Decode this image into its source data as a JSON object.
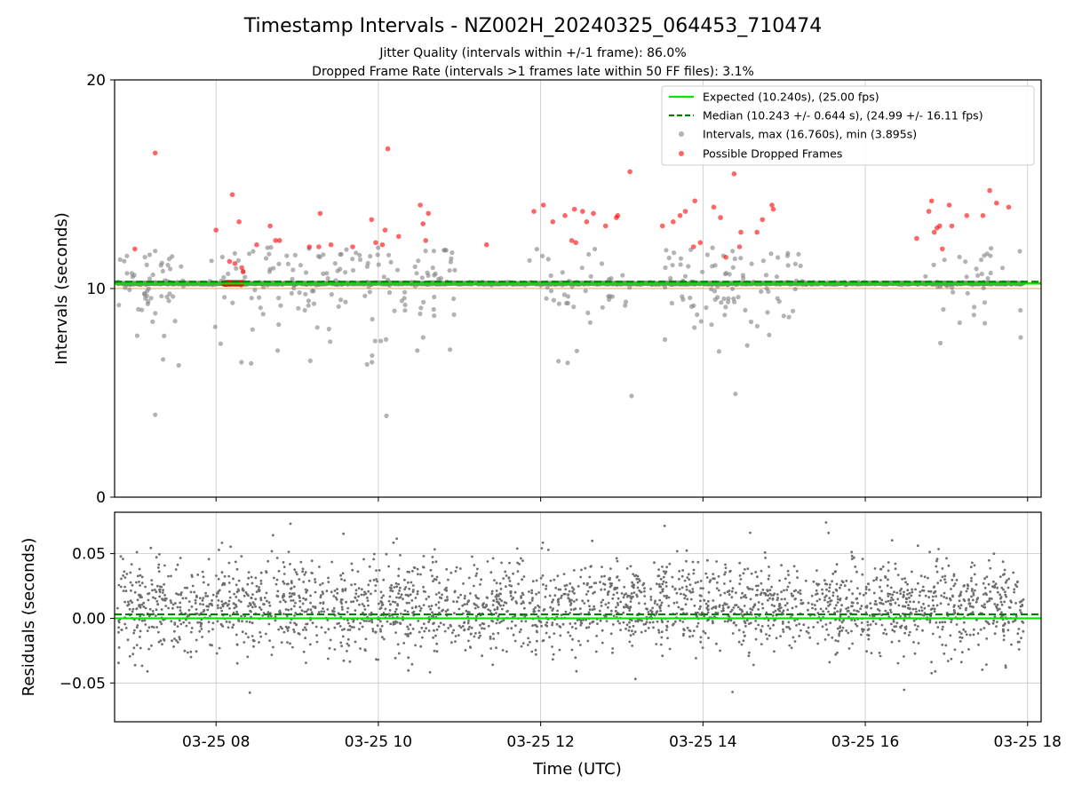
{
  "title": "Timestamp Intervals - NZ002H_20240325_064453_710474",
  "subtitle_lines": [
    "Jitter Quality (intervals within +/-1 frame): 86.0%",
    "Dropped Frame Rate (intervals >1 frames late within 50 FF files): 3.1%"
  ],
  "colors": {
    "expected": "#00e600",
    "median": "#008000",
    "intervals": "#808080",
    "dropped": "#ff0000",
    "band": "#ffd966"
  },
  "chart_data": [
    {
      "type": "scatter",
      "panel": "top",
      "ylabel": "Intervals (seconds)",
      "ylim": [
        0,
        20
      ],
      "yticks": [
        0,
        10,
        20
      ],
      "x_range": [
        "03-25 06:45",
        "03-25 18:10"
      ],
      "grid": true,
      "legend_placement": "top-right",
      "legend": [
        "Expected (10.240s), (25.00 fps)",
        "Median (10.243 +/- 0.644 s), (24.99 +/- 16.11 fps)",
        "Intervals, max (16.760s), min (3.895s)",
        "Possible Dropped Frames"
      ],
      "expected_interval": 10.24,
      "median_interval": 10.243,
      "interval_max": 16.76,
      "interval_min": 3.895,
      "dropped_points": [
        [
          "03-25 07:00",
          11.9
        ],
        [
          "03-25 07:15",
          16.5
        ],
        [
          "03-25 08:00",
          12.8
        ],
        [
          "03-25 08:10",
          11.3
        ],
        [
          "03-25 08:12",
          14.5
        ],
        [
          "03-25 08:14",
          11.2
        ],
        [
          "03-25 08:17",
          13.2
        ],
        [
          "03-25 08:19",
          11.0
        ],
        [
          "03-25 08:20",
          10.8
        ],
        [
          "03-25 08:30",
          12.1
        ],
        [
          "03-25 08:40",
          13.0
        ],
        [
          "03-25 08:44",
          12.3
        ],
        [
          "03-25 08:47",
          12.3
        ],
        [
          "03-25 09:09",
          12.0
        ],
        [
          "03-25 09:16",
          12.0
        ],
        [
          "03-25 09:17",
          13.6
        ],
        [
          "03-25 09:25",
          12.1
        ],
        [
          "03-25 09:41",
          12.0
        ],
        [
          "03-25 09:55",
          13.3
        ],
        [
          "03-25 09:58",
          12.2
        ],
        [
          "03-25 10:03",
          12.1
        ],
        [
          "03-25 10:05",
          12.8
        ],
        [
          "03-25 10:07",
          16.7
        ],
        [
          "03-25 10:15",
          12.5
        ],
        [
          "03-25 10:31",
          14.0
        ],
        [
          "03-25 10:33",
          13.1
        ],
        [
          "03-25 10:35",
          12.3
        ],
        [
          "03-25 10:37",
          13.6
        ],
        [
          "03-25 11:20",
          12.1
        ],
        [
          "03-25 11:55",
          13.7
        ],
        [
          "03-25 12:02",
          14.0
        ],
        [
          "03-25 12:09",
          13.2
        ],
        [
          "03-25 12:18",
          13.5
        ],
        [
          "03-25 12:23",
          12.3
        ],
        [
          "03-25 12:25",
          13.8
        ],
        [
          "03-25 12:26",
          12.2
        ],
        [
          "03-25 12:31",
          13.7
        ],
        [
          "03-25 12:34",
          13.2
        ],
        [
          "03-25 12:39",
          13.6
        ],
        [
          "03-25 12:48",
          13.0
        ],
        [
          "03-25 12:56",
          13.4
        ],
        [
          "03-25 12:57",
          13.5
        ],
        [
          "03-25 13:06",
          15.6
        ],
        [
          "03-25 13:30",
          13.0
        ],
        [
          "03-25 13:38",
          13.2
        ],
        [
          "03-25 13:43",
          13.5
        ],
        [
          "03-25 13:47",
          13.7
        ],
        [
          "03-25 13:53",
          12.0
        ],
        [
          "03-25 13:54",
          14.2
        ],
        [
          "03-25 13:58",
          12.2
        ],
        [
          "03-25 14:08",
          13.9
        ],
        [
          "03-25 14:13",
          13.4
        ],
        [
          "03-25 14:17",
          11.5
        ],
        [
          "03-25 14:23",
          15.5
        ],
        [
          "03-25 14:27",
          12.0
        ],
        [
          "03-25 14:28",
          12.7
        ],
        [
          "03-25 14:40",
          12.7
        ],
        [
          "03-25 14:44",
          13.3
        ],
        [
          "03-25 14:51",
          14.0
        ],
        [
          "03-25 14:52",
          13.8
        ],
        [
          "03-25 16:38",
          12.4
        ],
        [
          "03-25 16:47",
          13.7
        ],
        [
          "03-25 16:49",
          14.2
        ],
        [
          "03-25 16:51",
          12.7
        ],
        [
          "03-25 16:53",
          12.9
        ],
        [
          "03-25 16:55",
          13.0
        ],
        [
          "03-25 16:57",
          11.9
        ],
        [
          "03-25 17:02",
          14.0
        ],
        [
          "03-25 17:04",
          13.0
        ],
        [
          "03-25 17:15",
          13.5
        ],
        [
          "03-25 17:27",
          13.5
        ],
        [
          "03-25 17:32",
          14.7
        ],
        [
          "03-25 17:37",
          14.1
        ],
        [
          "03-25 17:46",
          13.9
        ]
      ]
    },
    {
      "type": "scatter",
      "panel": "bottom",
      "xlabel": "Time (UTC)",
      "ylabel": "Residuals (seconds)",
      "ylim": [
        -0.08,
        0.082
      ],
      "yticks": [
        0.05,
        0.0,
        -0.05
      ],
      "ytick_labels": [
        "0.05",
        "0.00",
        "−0.05"
      ],
      "expected_residual": 0.0,
      "median_residual": 0.003,
      "x_range": [
        "03-25 06:45",
        "03-25 18:10"
      ],
      "xticks": [
        "03-25 08",
        "03-25 10",
        "03-25 12",
        "03-25 14",
        "03-25 16",
        "03-25 18"
      ],
      "grid": true
    }
  ]
}
